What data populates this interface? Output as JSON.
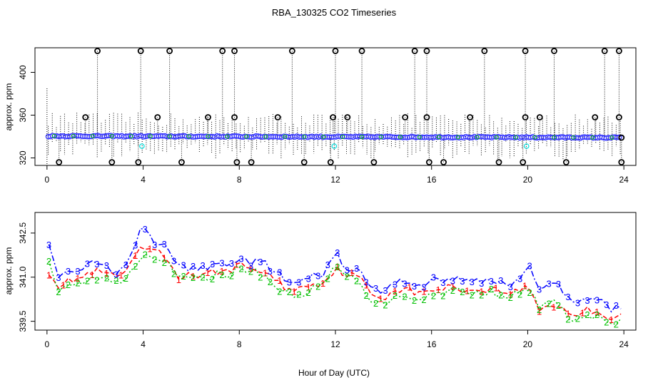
{
  "title": "RBA_130325  CO2 Timeseries",
  "xlabel": "Hour of Day (UTC)",
  "colors": {
    "axis": "#000000",
    "series1": "#ff0000",
    "series2": "#00c000",
    "series3": "#0000ff",
    "fill_points": "#3333ff",
    "outlier_points": "#00dddd"
  },
  "chart_data": [
    {
      "type": "scatter",
      "panel": "top",
      "ylabel": "approx. ppm",
      "xlim": [
        -0.5,
        24.5
      ],
      "ylim": [
        313,
        423
      ],
      "xticks": [
        0,
        4,
        8,
        12,
        16,
        20,
        24
      ],
      "yticks": [
        320,
        360,
        400
      ],
      "baseline_start": 340.5,
      "baseline_end": 339.0,
      "spike_high_hours": [
        2.1,
        3.9,
        5.1,
        7.3,
        7.8,
        10.2,
        12.0,
        13.1,
        15.3,
        15.8,
        18.2,
        19.9,
        21.1,
        23.2,
        23.8
      ],
      "spike_mid_hours": [
        1.6,
        4.6,
        6.7,
        7.8,
        9.6,
        11.9,
        12.5,
        14.9,
        15.8,
        17.6,
        19.9,
        20.5,
        22.8,
        23.8
      ],
      "spike_low_hours": [
        0.5,
        2.7,
        3.8,
        5.6,
        7.9,
        8.5,
        10.7,
        11.8,
        13.6,
        15.9,
        16.5,
        18.8,
        19.8,
        21.6,
        23.9
      ],
      "cyan_outlier_hours": [
        3.95,
        11.95,
        19.95
      ],
      "high_value": 420,
      "mid_value": 358,
      "low_value": 316,
      "cyan_value": 331
    },
    {
      "type": "line",
      "panel": "bottom",
      "ylabel": "approx. ppm",
      "xlim": [
        -0.5,
        24.5
      ],
      "ylim": [
        339.2,
        343.2
      ],
      "xticks": [
        0,
        4,
        8,
        12,
        16,
        20,
        24
      ],
      "yticks": [
        339.5,
        341.0,
        342.5
      ],
      "ytick_labels": [
        "339.5",
        "341.0",
        "342.5"
      ],
      "x": [
        0.08,
        0.5,
        1.0,
        1.5,
        2.0,
        2.5,
        3.0,
        3.5,
        3.95,
        4.5,
        5.0,
        5.5,
        6.0,
        6.5,
        7.0,
        7.5,
        8.0,
        8.5,
        9.0,
        9.5,
        10.0,
        10.5,
        11.0,
        11.5,
        12.0,
        12.5,
        13.0,
        13.5,
        14.0,
        14.5,
        15.0,
        15.5,
        16.0,
        16.5,
        17.0,
        17.5,
        18.0,
        18.5,
        19.0,
        19.5,
        20.0,
        20.5,
        21.0,
        21.5,
        22.0,
        22.5,
        23.0,
        23.5,
        23.9
      ],
      "series": [
        {
          "name": "1",
          "values": [
            341.2,
            340.7,
            340.9,
            341.0,
            341.2,
            341.1,
            341.0,
            341.4,
            342.0,
            341.9,
            341.6,
            341.0,
            341.1,
            341.0,
            341.2,
            341.2,
            341.4,
            341.3,
            341.2,
            340.9,
            340.6,
            340.6,
            340.8,
            340.8,
            341.3,
            341.1,
            341.0,
            340.4,
            340.3,
            340.6,
            340.6,
            340.4,
            340.6,
            340.6,
            340.7,
            340.5,
            340.6,
            340.6,
            340.5,
            340.5,
            340.7,
            339.9,
            340.1,
            339.9,
            339.7,
            339.9,
            339.8,
            339.6,
            339.8
          ]
        },
        {
          "name": "2",
          "values": [
            341.5,
            340.5,
            340.7,
            340.8,
            341.0,
            340.9,
            340.8,
            341.2,
            341.8,
            341.7,
            341.6,
            340.9,
            341.0,
            340.9,
            341.1,
            341.1,
            341.3,
            341.2,
            341.1,
            340.7,
            340.4,
            340.4,
            340.6,
            340.7,
            341.4,
            341.0,
            340.9,
            340.2,
            340.1,
            340.4,
            340.4,
            340.2,
            340.4,
            340.5,
            340.6,
            340.4,
            340.5,
            340.5,
            340.4,
            340.4,
            340.6,
            340.0,
            340.2,
            339.8,
            339.5,
            339.7,
            339.6,
            339.4,
            339.5
          ]
        },
        {
          "name": "3",
          "values": [
            342.0,
            341.0,
            341.2,
            341.3,
            341.5,
            341.3,
            341.2,
            341.7,
            342.7,
            342.1,
            342.1,
            341.3,
            341.3,
            341.3,
            341.4,
            341.5,
            341.6,
            341.5,
            341.5,
            341.2,
            340.8,
            340.8,
            341.0,
            341.1,
            341.8,
            341.3,
            341.2,
            340.6,
            340.5,
            340.8,
            340.9,
            340.7,
            340.9,
            340.9,
            341.0,
            340.8,
            340.9,
            340.9,
            340.8,
            340.8,
            341.4,
            340.6,
            341.0,
            340.4,
            340.0,
            340.3,
            340.2,
            339.9,
            340.0
          ]
        }
      ]
    }
  ]
}
